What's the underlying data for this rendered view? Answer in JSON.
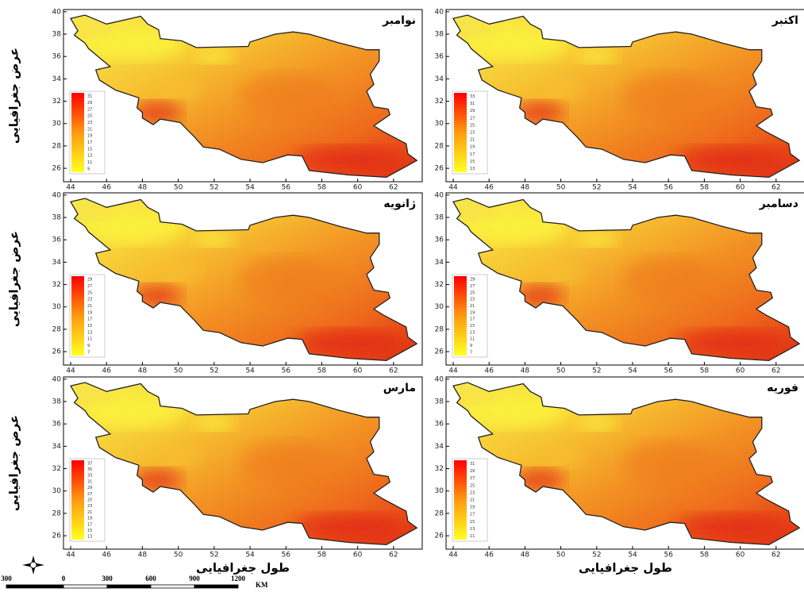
{
  "panels": [
    {
      "title": "نوامبر",
      "legend": [
        31,
        29,
        27,
        25,
        23,
        21,
        19,
        17,
        15,
        13,
        11,
        9
      ]
    },
    {
      "title": "اکتبر",
      "legend": [
        33,
        31,
        29,
        27,
        25,
        23,
        21,
        19,
        17,
        15,
        13
      ]
    },
    {
      "title": "ژانویه",
      "legend": [
        29,
        27,
        25,
        23,
        21,
        19,
        17,
        15,
        13,
        11,
        9,
        7
      ]
    },
    {
      "title": "دسامبر",
      "legend": [
        29,
        27,
        25,
        23,
        21,
        19,
        17,
        15,
        13,
        11,
        9,
        7
      ]
    },
    {
      "title": "مارس",
      "legend": [
        37,
        35,
        33,
        31,
        29,
        27,
        25,
        23,
        21,
        19,
        17,
        15,
        13
      ]
    },
    {
      "title": "فوریه",
      "legend": [
        31,
        29,
        27,
        25,
        23,
        21,
        19,
        17,
        15,
        13,
        11
      ]
    }
  ],
  "xticks": [
    44,
    46,
    48,
    50,
    52,
    54,
    56,
    58,
    60,
    62
  ],
  "yticks": [
    26,
    28,
    30,
    32,
    34,
    36,
    38,
    40
  ],
  "y_axis_label": "عرض جغرافیایی",
  "x_axis_label": "طول جغرافیایی",
  "scale_bar": {
    "labels": [
      300,
      0,
      300,
      600,
      900,
      1200
    ],
    "unit": "KM"
  }
}
